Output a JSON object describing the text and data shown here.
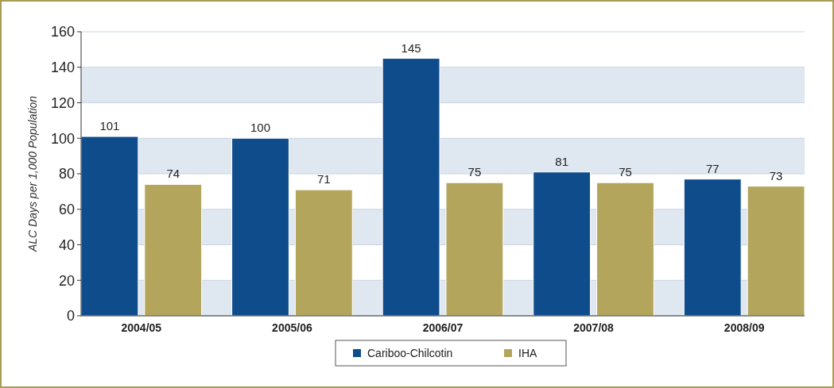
{
  "chart_data": {
    "type": "bar",
    "ylabel": "ALC Days per 1,000 Population",
    "categories": [
      "2004/05",
      "2005/06",
      "2006/07",
      "2007/08",
      "2008/09"
    ],
    "series": [
      {
        "name": "Cariboo-Chilcotin",
        "color": "#0f4c8c",
        "values": [
          101,
          100,
          145,
          81,
          77
        ]
      },
      {
        "name": "IHA",
        "color": "#b3a55c",
        "values": [
          74,
          71,
          75,
          75,
          73
        ]
      }
    ],
    "ylim": [
      0,
      160
    ],
    "yticks": [
      0,
      20,
      40,
      60,
      80,
      100,
      120,
      140,
      160
    ],
    "grid": "y",
    "legend": "bottom",
    "data_labels": true
  }
}
